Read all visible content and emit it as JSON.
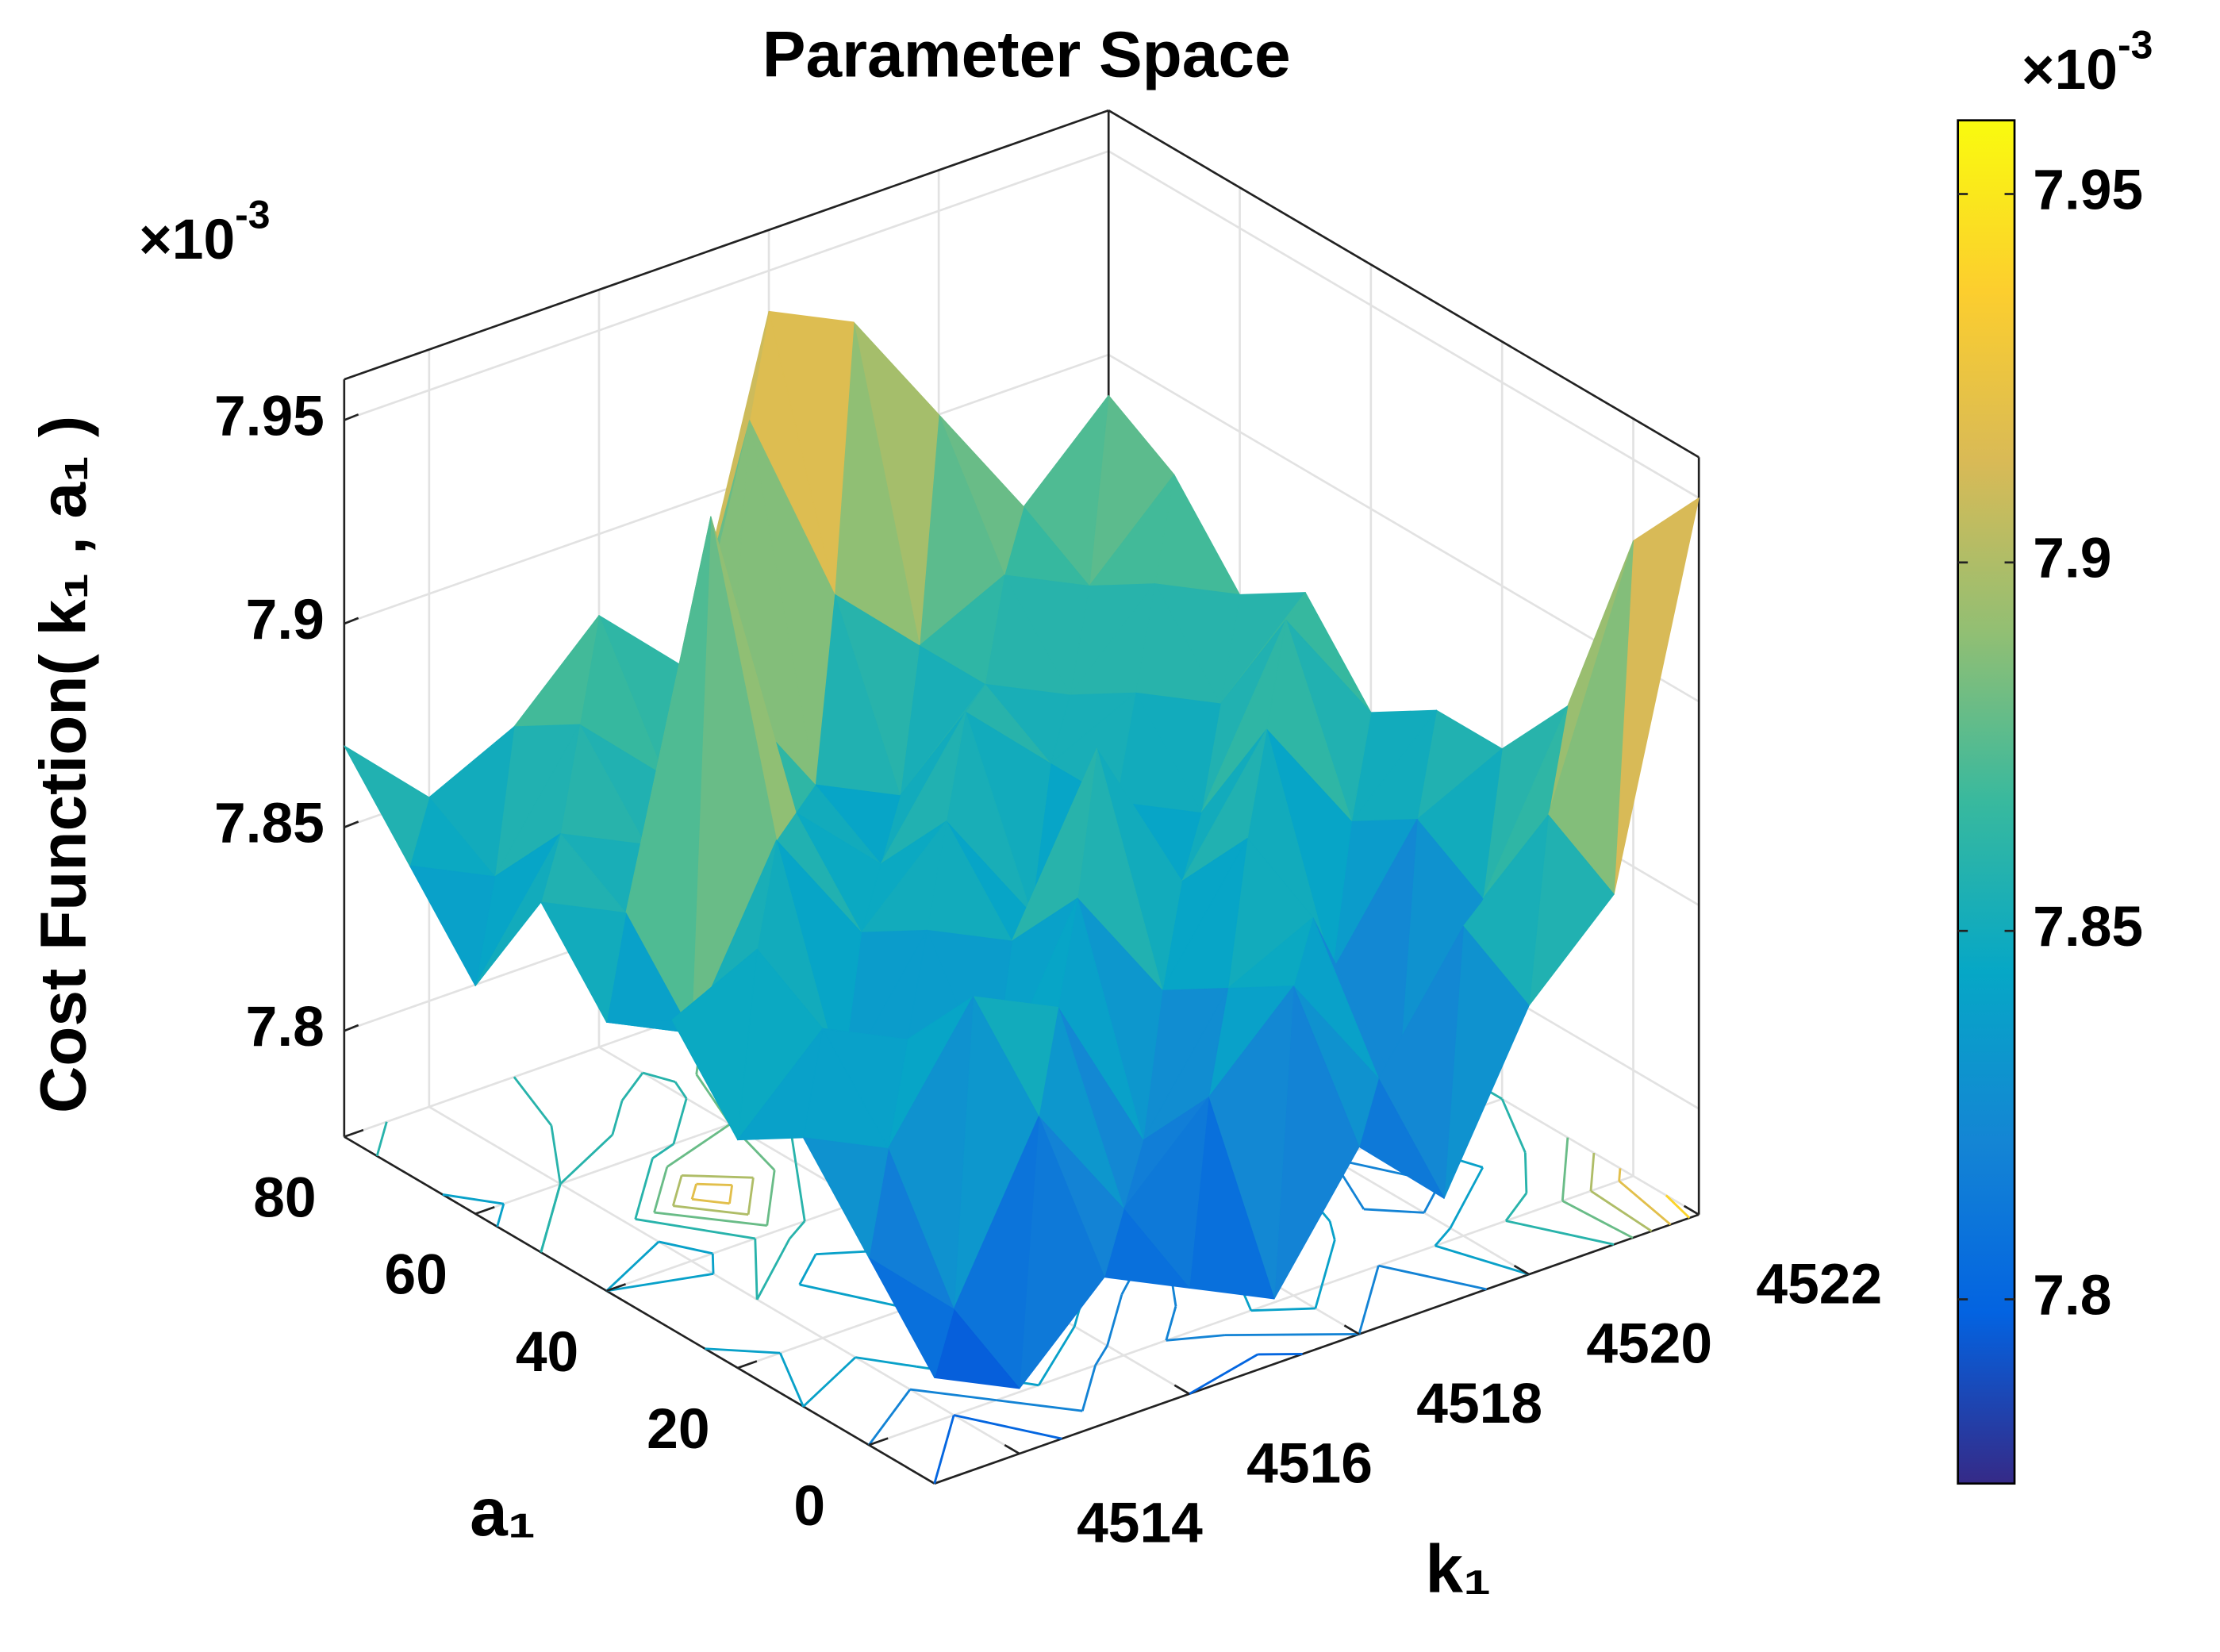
{
  "chart_data": {
    "type": "surface",
    "title": "Parameter Space",
    "xlabel": "k₁",
    "ylabel": "a₁",
    "zlabel": "Cost Function( k₁ , a₁ )",
    "z_exponent": {
      "base": "×10",
      "power": "-3"
    },
    "colorbar_exponent": {
      "base": "×10",
      "power": "-3"
    },
    "x": [
      4513,
      4514,
      4515,
      4516,
      4517,
      4518,
      4519,
      4520,
      4521,
      4522
    ],
    "y": [
      -10,
      0,
      10,
      20,
      30,
      40,
      50,
      60,
      70,
      80
    ],
    "z": [
      [
        7.8,
        7.79,
        7.81,
        7.8,
        7.79,
        7.82,
        7.8,
        7.84,
        7.86,
        7.95
      ],
      [
        7.82,
        7.8,
        7.84,
        7.81,
        7.83,
        7.85,
        7.82,
        7.85,
        7.87,
        7.93
      ],
      [
        7.84,
        7.83,
        7.86,
        7.85,
        7.81,
        7.84,
        7.85,
        7.8,
        7.84,
        7.88
      ],
      [
        7.83,
        7.85,
        7.84,
        7.82,
        7.86,
        7.83,
        7.86,
        7.82,
        7.85,
        7.86
      ],
      [
        7.85,
        7.86,
        7.82,
        7.85,
        7.84,
        7.88,
        7.84,
        7.87,
        7.84,
        7.86
      ],
      [
        7.84,
        7.83,
        7.87,
        7.84,
        7.86,
        7.83,
        7.85,
        7.84,
        7.88,
        7.85
      ],
      [
        7.86,
        7.85,
        7.94,
        7.86,
        7.84,
        7.87,
        7.85,
        7.86,
        7.85,
        7.87
      ],
      [
        7.83,
        7.86,
        7.85,
        7.88,
        7.85,
        7.84,
        7.86,
        7.85,
        7.87,
        7.86
      ],
      [
        7.85,
        7.84,
        7.87,
        7.85,
        7.93,
        7.88,
        7.86,
        7.87,
        7.86,
        7.88
      ],
      [
        7.87,
        7.85,
        7.86,
        7.88,
        7.86,
        7.94,
        7.93,
        7.9,
        7.87,
        7.89
      ]
    ],
    "xlim": [
      4513,
      4522
    ],
    "ylim": [
      -10,
      80
    ],
    "zlim": [
      7.774,
      7.96
    ],
    "xticks": [
      4514,
      4516,
      4518,
      4520,
      4522
    ],
    "yticks": [
      0,
      20,
      40,
      60,
      80
    ],
    "zticks": [
      7.8,
      7.85,
      7.9,
      7.95
    ],
    "clim": [
      7.775,
      7.96
    ],
    "cticks": [
      7.8,
      7.85,
      7.9,
      7.95
    ],
    "colormap": [
      "#352a87",
      "#0363e1",
      "#1485d4",
      "#06a7c6",
      "#38b99e",
      "#92bf73",
      "#d9ba56",
      "#fcce2e",
      "#f9fb0e"
    ],
    "contour_levels": [
      7.8,
      7.82,
      7.84,
      7.86,
      7.88,
      7.9,
      7.92,
      7.94
    ],
    "grid": true
  }
}
